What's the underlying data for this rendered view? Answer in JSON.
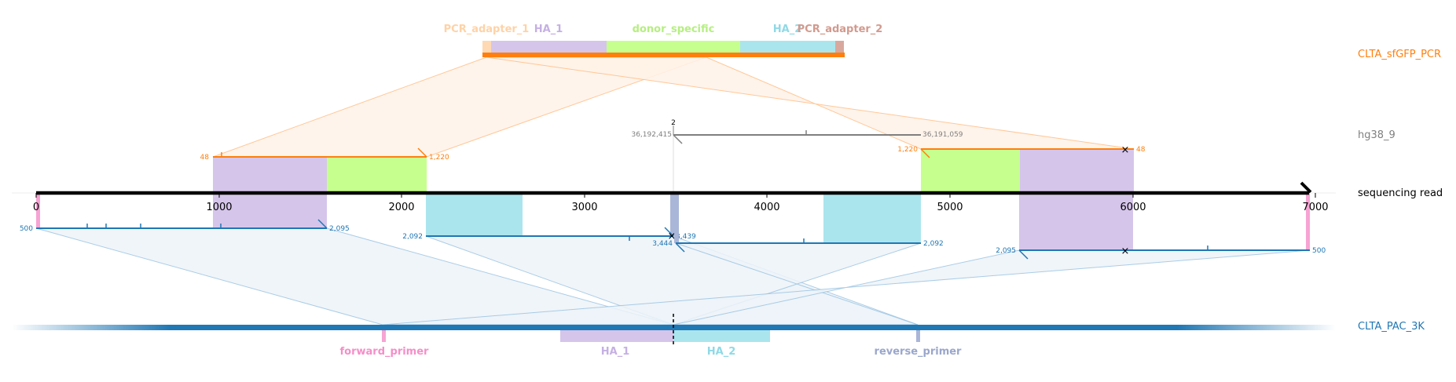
{
  "colors": {
    "pcr": "#ff7f0e",
    "genome": "#7f7f7f",
    "plasmid": "#1f77b4",
    "read": "#000000",
    "HA_1": "#d5c5ea",
    "HA_2": "#aae5ee",
    "donor": "#c6ff8e",
    "adapter_1": "#ffd9b3",
    "adapter_2": "#d8a89e",
    "forward_primer": "#f7a3d3",
    "reverse_primer": "#aab6d8",
    "pcr_fan": "#fff3e8",
    "plasmid_fan": "#eef4f9"
  },
  "track_labels": {
    "pcr": "CLTA_sfGFP_PCR",
    "genome": "hg38_9",
    "read": "sequencing read",
    "plasmid": "CLTA_PAC_3K"
  },
  "pcr_features": {
    "adapter_1": "PCR_adapter_1",
    "HA_1": "HA_1",
    "donor": "donor_specific",
    "HA_2": "HA_2",
    "adapter_2": "PCR_adapter_2"
  },
  "plasmid_features": {
    "forward_primer": "forward_primer",
    "HA_1": "HA_1",
    "HA_2": "HA_2",
    "reverse_primer": "reverse_primer"
  },
  "read_axis": {
    "ticks": [
      "0",
      "1000",
      "2000",
      "3000",
      "4000",
      "5000",
      "6000",
      "7000"
    ]
  },
  "alignment_labels": {
    "pcr_left_start": "48",
    "pcr_left_end": "1,220",
    "pcr_right_start": "1,220",
    "pcr_right_end": "48",
    "genome_start": "36,192,415",
    "genome_end": "36,191,059",
    "genome_marker": "2",
    "plasmid_1_start": "500",
    "plasmid_1_end": "2,095",
    "plasmid_2_start": "2,092",
    "plasmid_2_end": "3,439",
    "plasmid_3_start": "3,444",
    "plasmid_3_end": "2,092",
    "plasmid_4_start": "2,095",
    "plasmid_4_end": "500"
  }
}
